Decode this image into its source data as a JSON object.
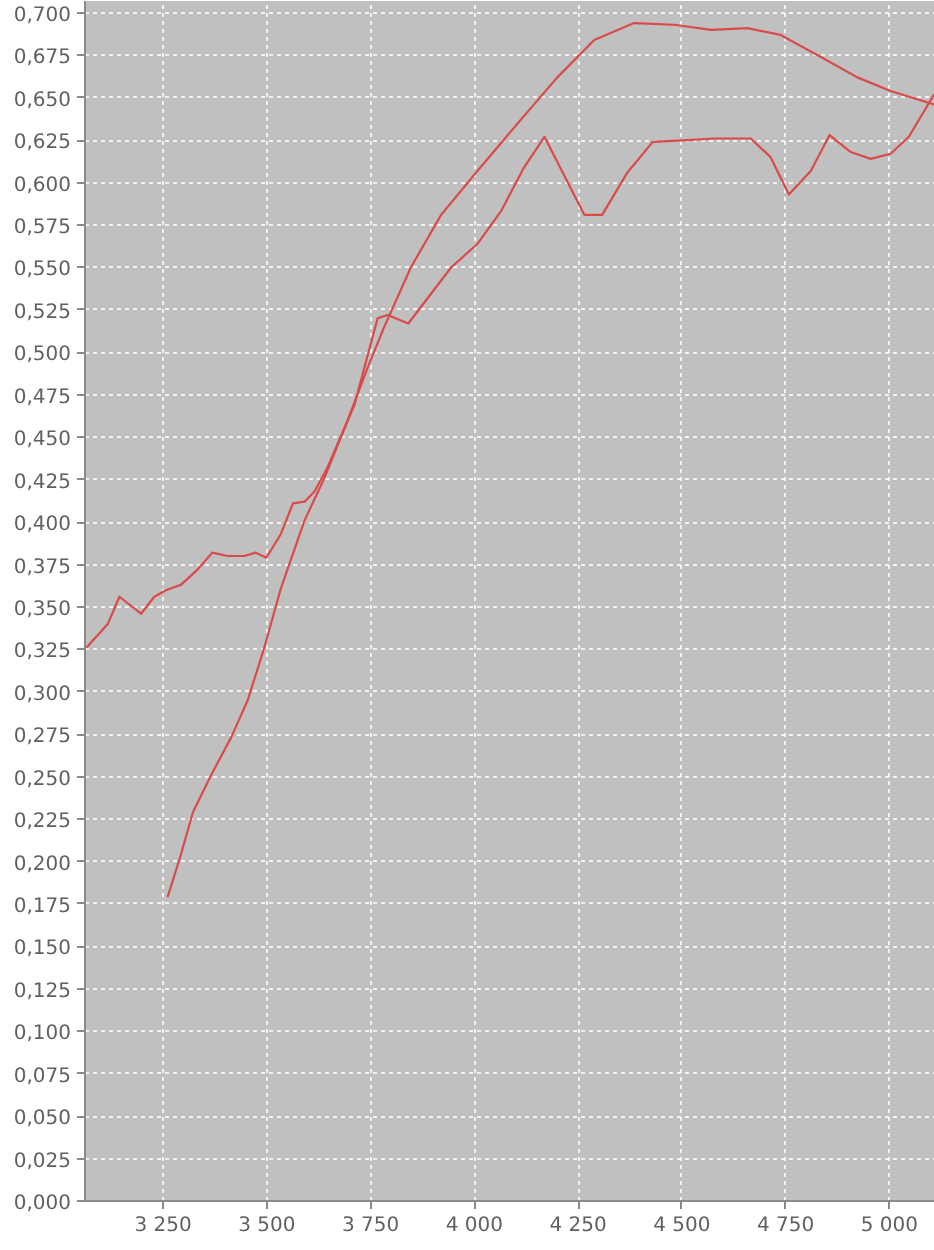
{
  "chart_data": {
    "type": "line",
    "xlim": [
      3062,
      5110
    ],
    "ylim": [
      0,
      0.707
    ],
    "xticks": [
      {
        "value": 3250,
        "label": "3 250"
      },
      {
        "value": 3500,
        "label": "3 500"
      },
      {
        "value": 3750,
        "label": "3 750"
      },
      {
        "value": 4000,
        "label": "4 000"
      },
      {
        "value": 4250,
        "label": "4 250"
      },
      {
        "value": 4500,
        "label": "4 500"
      },
      {
        "value": 4750,
        "label": "4 750"
      },
      {
        "value": 5000,
        "label": "5 000"
      }
    ],
    "yticks": [
      {
        "value": 0,
        "label": "0,000"
      },
      {
        "value": 0.025,
        "label": "0,025"
      },
      {
        "value": 0.05,
        "label": "0,050"
      },
      {
        "value": 0.075,
        "label": "0,075"
      },
      {
        "value": 0.1,
        "label": "0,100"
      },
      {
        "value": 0.125,
        "label": "0,125"
      },
      {
        "value": 0.15,
        "label": "0,150"
      },
      {
        "value": 0.175,
        "label": "0,175"
      },
      {
        "value": 0.2,
        "label": "0,200"
      },
      {
        "value": 0.225,
        "label": "0,225"
      },
      {
        "value": 0.25,
        "label": "0,250"
      },
      {
        "value": 0.275,
        "label": "0,275"
      },
      {
        "value": 0.3,
        "label": "0,300"
      },
      {
        "value": 0.325,
        "label": "0,325"
      },
      {
        "value": 0.35,
        "label": "0,350"
      },
      {
        "value": 0.375,
        "label": "0,375"
      },
      {
        "value": 0.4,
        "label": "0,400"
      },
      {
        "value": 0.425,
        "label": "0,425"
      },
      {
        "value": 0.45,
        "label": "0,450"
      },
      {
        "value": 0.475,
        "label": "0,475"
      },
      {
        "value": 0.5,
        "label": "0,500"
      },
      {
        "value": 0.525,
        "label": "0,525"
      },
      {
        "value": 0.55,
        "label": "0,550"
      },
      {
        "value": 0.575,
        "label": "0,575"
      },
      {
        "value": 0.6,
        "label": "0,600"
      },
      {
        "value": 0.625,
        "label": "0,625"
      },
      {
        "value": 0.65,
        "label": "0,650"
      },
      {
        "value": 0.675,
        "label": "0,675"
      },
      {
        "value": 0.7,
        "label": "0,700"
      }
    ],
    "grid": true,
    "series": [
      {
        "color": "#d84b4b",
        "x": [
          3065,
          3117,
          3145,
          3197,
          3229,
          3258,
          3293,
          3333,
          3369,
          3406,
          3446,
          3473,
          3499,
          3534,
          3563,
          3591,
          3615,
          3646,
          3711,
          3767,
          3791,
          3841,
          3944,
          4008,
          4064,
          4120,
          4169,
          4265,
          4308,
          4369,
          4430,
          4514,
          4578,
          4666,
          4714,
          4758,
          4811,
          4856,
          4907,
          4955,
          5003,
          5047,
          5108
        ],
        "values": [
          0.326,
          0.34,
          0.356,
          0.346,
          0.356,
          0.36,
          0.363,
          0.372,
          0.382,
          0.38,
          0.38,
          0.382,
          0.379,
          0.393,
          0.411,
          0.412,
          0.418,
          0.432,
          0.469,
          0.52,
          0.522,
          0.517,
          0.55,
          0.564,
          0.583,
          0.609,
          0.627,
          0.581,
          0.581,
          0.606,
          0.624,
          0.625,
          0.626,
          0.626,
          0.615,
          0.593,
          0.607,
          0.628,
          0.618,
          0.614,
          0.617,
          0.627,
          0.652
        ]
      },
      {
        "color": "#d84b4b",
        "x": [
          3261,
          3293,
          3322,
          3366,
          3414,
          3454,
          3494,
          3534,
          3591,
          3639,
          3695,
          3743,
          3783,
          3847,
          3920,
          4008,
          4112,
          4200,
          4289,
          4385,
          4482,
          4570,
          4658,
          4738,
          4835,
          4923,
          5003,
          5108
        ],
        "values": [
          0.179,
          0.204,
          0.229,
          0.251,
          0.273,
          0.295,
          0.326,
          0.361,
          0.401,
          0.426,
          0.46,
          0.491,
          0.515,
          0.55,
          0.581,
          0.607,
          0.637,
          0.662,
          0.684,
          0.694,
          0.693,
          0.69,
          0.691,
          0.687,
          0.674,
          0.662,
          0.654,
          0.646
        ]
      }
    ]
  }
}
